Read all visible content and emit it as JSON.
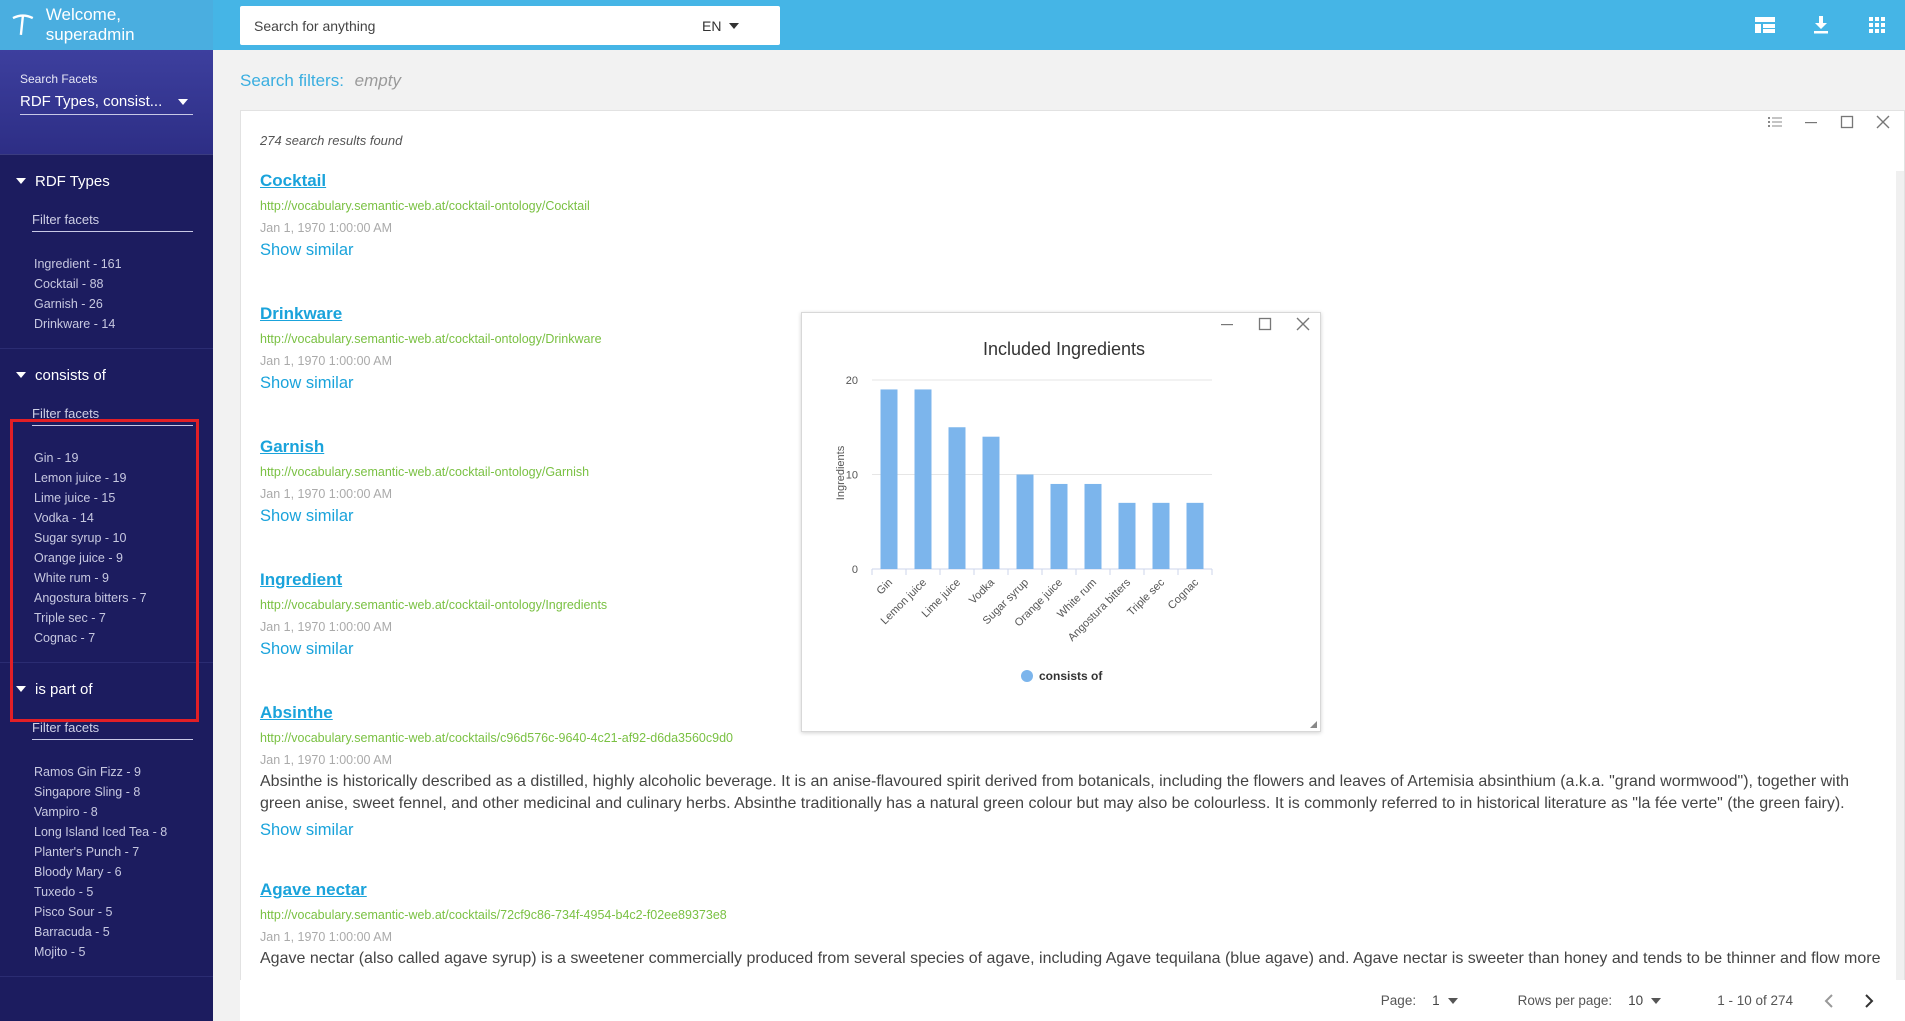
{
  "header": {
    "welcome": "Welcome, superadmin",
    "search_placeholder": "Search for anything",
    "language": "EN",
    "icons": [
      "dashboard-icon",
      "download-icon",
      "apps-grid-icon"
    ]
  },
  "sidebar": {
    "facet_select_label": "Search Facets",
    "facet_select_value": "RDF Types, consist...",
    "filter_placeholder": "Filter facets",
    "groups": [
      {
        "title": "RDF Types",
        "items": [
          "Ingredient - 161",
          "Cocktail - 88",
          "Garnish - 26",
          "Drinkware - 14"
        ]
      },
      {
        "title": "consists of",
        "items": [
          "Gin - 19",
          "Lemon juice - 19",
          "Lime juice - 15",
          "Vodka - 14",
          "Sugar syrup - 10",
          "Orange juice - 9",
          "White rum - 9",
          "Angostura bitters - 7",
          "Triple sec - 7",
          "Cognac - 7"
        ]
      },
      {
        "title": "is part of",
        "items": [
          "Ramos Gin Fizz - 9",
          "Singapore Sling - 8",
          "Vampiro - 8",
          "Long Island Iced Tea - 8",
          "Planter's Punch - 7",
          "Bloody Mary - 6",
          "Tuxedo - 5",
          "Pisco Sour - 5",
          "Barracuda - 5",
          "Mojito - 5"
        ]
      }
    ]
  },
  "main": {
    "filters_label": "Search filters:",
    "filters_value": "empty",
    "results_count": "274 search results found",
    "show_similar": "Show similar",
    "results": [
      {
        "title": "Cocktail",
        "uri": "http://vocabulary.semantic-web.at/cocktail-ontology/Cocktail",
        "date": "Jan 1, 1970 1:00:00 AM",
        "desc": ""
      },
      {
        "title": "Drinkware",
        "uri": "http://vocabulary.semantic-web.at/cocktail-ontology/Drinkware",
        "date": "Jan 1, 1970 1:00:00 AM",
        "desc": ""
      },
      {
        "title": "Garnish",
        "uri": "http://vocabulary.semantic-web.at/cocktail-ontology/Garnish",
        "date": "Jan 1, 1970 1:00:00 AM",
        "desc": ""
      },
      {
        "title": "Ingredient",
        "uri": "http://vocabulary.semantic-web.at/cocktail-ontology/Ingredients",
        "date": "Jan 1, 1970 1:00:00 AM",
        "desc": ""
      },
      {
        "title": "Absinthe",
        "uri": "http://vocabulary.semantic-web.at/cocktails/c96d576c-9640-4c21-af92-d6da3560c9d0",
        "date": "Jan 1, 1970 1:00:00 AM",
        "desc": "Absinthe is historically described as a distilled, highly alcoholic beverage. It is an anise-flavoured spirit derived from botanicals, including the flowers and leaves of Artemisia absinthium (a.k.a. \"grand wormwood\"), together with green anise, sweet fennel, and other medicinal and culinary herbs. Absinthe traditionally has a natural green colour but may also be colourless. It is commonly referred to in historical literature as \"la fée verte\" (the green fairy)."
      },
      {
        "title": "Agave nectar",
        "uri": "http://vocabulary.semantic-web.at/cocktails/72cf9c86-734f-4954-b4c2-f02ee89373e8",
        "date": "Jan 1, 1970 1:00:00 AM",
        "desc": "Agave nectar (also called agave syrup) is a sweetener commercially produced from several species of agave, including Agave tequilana (blue agave) and. Agave nectar is sweeter than honey and tends to be thinner and flow more"
      }
    ]
  },
  "pagination": {
    "page_label": "Page:",
    "page_value": "1",
    "rows_label": "Rows per page:",
    "rows_value": "10",
    "range": "1 - 10 of 274"
  },
  "colors": {
    "topbar": "#45b5e6",
    "sidebar": "#1c1c5f",
    "accent": "#1aa3db",
    "uri_green": "#7ac143",
    "bar": "#7cb5ec",
    "highlight": "#e21f26"
  },
  "chart_data": {
    "type": "bar",
    "title": "Included Ingredients",
    "ylabel": "Ingredients",
    "xlabel": "",
    "categories": [
      "Gin",
      "Lemon juice",
      "Lime juice",
      "Vodka",
      "Sugar syrup",
      "Orange juice",
      "White rum",
      "Angostura bitters",
      "Triple sec",
      "Cognac"
    ],
    "series": [
      {
        "name": "consists of",
        "values": [
          19,
          19,
          15,
          14,
          10,
          9,
          9,
          7,
          7,
          7
        ]
      }
    ],
    "ylim": [
      0,
      20
    ],
    "yticks": [
      0,
      10,
      20
    ],
    "grid": true,
    "legend": "bottom-center"
  }
}
